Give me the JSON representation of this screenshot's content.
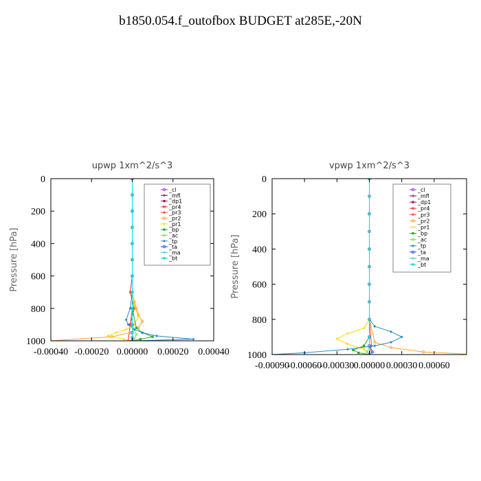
{
  "main_title": "b1850.054.f_outofbox  BUDGET at285E,-20N",
  "colors": {
    "_cl": "#9933cc",
    "_mfl": "#660066",
    "_dp1": "#b01050",
    "_pr4": "#e03050",
    "_pr3": "#ff4040",
    "_pr2": "#ffa030",
    "_pr1": "#ffd700",
    "_bp": "#22aa22",
    "_ac": "#66ee44",
    "_tp": "#2288cc",
    "_ta": "#2244ee",
    "_ma": "#44bbbb",
    "_bt": "#00dddd"
  },
  "chart_data": [
    {
      "type": "line",
      "title": "upwp  1xm^2/s^3",
      "ylabel": "Pressure [hPa]",
      "ylim": [
        1000,
        0
      ],
      "xlim": [
        -0.0004,
        0.0004
      ],
      "yticks": [
        0,
        200,
        400,
        600,
        800,
        1000
      ],
      "ytick_labels": [
        "0",
        "200",
        "400",
        "600",
        "800",
        "1000"
      ],
      "xticks": [
        -0.0004,
        -0.0002,
        0.0,
        0.0002,
        0.0004
      ],
      "xtick_labels": [
        "-0.00040",
        "-0.00020",
        "0.00000",
        "0.00020",
        "0.00040"
      ],
      "legend": [
        "_cl",
        "_mfl",
        "_dp1",
        "_pr4",
        "_pr3",
        "_pr2",
        "_pr1",
        "_bp",
        "_ac",
        "_tp",
        "_ta",
        "_ma",
        "_bt"
      ],
      "series": [
        {
          "name": "_cl",
          "x": [
            0,
            0,
            0,
            0,
            0,
            0,
            0,
            0,
            0,
            0,
            0
          ],
          "y": [
            0,
            100,
            200,
            300,
            400,
            500,
            600,
            700,
            800,
            900,
            1000
          ]
        },
        {
          "name": "_mfl",
          "x": [
            0,
            0,
            0,
            0,
            0,
            0,
            0,
            0,
            0,
            0,
            0
          ],
          "y": [
            0,
            100,
            200,
            300,
            400,
            500,
            600,
            700,
            800,
            900,
            1000
          ]
        },
        {
          "name": "_dp1",
          "x": [
            0,
            0,
            0,
            0,
            0,
            0,
            0,
            0,
            0,
            0,
            0
          ],
          "y": [
            0,
            100,
            200,
            300,
            400,
            500,
            600,
            700,
            800,
            900,
            1000
          ]
        },
        {
          "name": "_pr4",
          "x": [
            0,
            0,
            0,
            0,
            0,
            0,
            0,
            -1e-05,
            1e-05,
            -1e-05,
            -2e-05
          ],
          "y": [
            0,
            100,
            200,
            300,
            400,
            500,
            600,
            700,
            800,
            900,
            1000
          ]
        },
        {
          "name": "_pr3",
          "x": [
            0,
            0,
            0,
            0,
            0,
            0,
            0,
            0,
            0,
            -1e-05,
            -2e-05
          ],
          "y": [
            0,
            100,
            200,
            300,
            400,
            500,
            600,
            700,
            800,
            900,
            1000
          ]
        },
        {
          "name": "_pr2",
          "x": [
            0,
            0,
            0,
            0,
            0,
            1e-05,
            2e-05,
            3e-05,
            5e-05,
            3e-05,
            -1e-05,
            -0.0001,
            -0.0004
          ],
          "y": [
            0,
            200,
            400,
            600,
            700,
            760,
            800,
            840,
            880,
            920,
            950,
            975,
            1000
          ]
        },
        {
          "name": "_pr1",
          "x": [
            0,
            0,
            0,
            0,
            0,
            1e-05,
            3e-05,
            1e-05,
            -3e-05,
            -8e-05,
            -0.00012,
            -4e-05,
            0
          ],
          "y": [
            0,
            200,
            400,
            600,
            700,
            780,
            850,
            900,
            930,
            950,
            970,
            990,
            1000
          ]
        },
        {
          "name": "_bp",
          "x": [
            0,
            0,
            0,
            0,
            0,
            2e-05,
            5e-05,
            0.0001,
            4e-05,
            0
          ],
          "y": [
            0,
            200,
            400,
            600,
            800,
            920,
            950,
            975,
            990,
            1000
          ]
        },
        {
          "name": "_ac",
          "x": [
            0,
            0,
            0,
            0,
            0,
            0,
            2e-05,
            1e-05,
            0
          ],
          "y": [
            0,
            200,
            400,
            600,
            800,
            900,
            960,
            990,
            1000
          ]
        },
        {
          "name": "_tp",
          "x": [
            0,
            0,
            0,
            0,
            0,
            -1e-05,
            -3e-05,
            -2e-05,
            1e-05,
            5e-05,
            0.00012,
            0.0003,
            0
          ],
          "y": [
            0,
            200,
            400,
            600,
            700,
            800,
            870,
            900,
            930,
            950,
            970,
            990,
            1000
          ]
        },
        {
          "name": "_ta",
          "x": [
            0,
            0,
            0,
            0,
            0,
            0,
            0,
            0,
            0
          ],
          "y": [
            0,
            200,
            400,
            600,
            800,
            900,
            950,
            980,
            1000
          ]
        },
        {
          "name": "_ma",
          "x": [
            0,
            0,
            0,
            0,
            0,
            0,
            0,
            0,
            0,
            0,
            0
          ],
          "y": [
            0,
            100,
            200,
            300,
            400,
            500,
            600,
            700,
            800,
            900,
            1000
          ]
        },
        {
          "name": "_bt",
          "x": [
            0,
            0,
            0,
            0,
            0,
            0,
            0,
            0,
            0,
            0,
            0
          ],
          "y": [
            0,
            100,
            200,
            300,
            400,
            500,
            600,
            700,
            800,
            900,
            1000
          ]
        }
      ]
    },
    {
      "type": "line",
      "title": "vpwp  1xm^2/s^3",
      "ylabel": "Pressure [hPa]",
      "ylim": [
        1000,
        0
      ],
      "xlim": [
        -0.0009,
        0.0009
      ],
      "yticks": [
        0,
        200,
        400,
        600,
        800,
        1000
      ],
      "ytick_labels": [
        "0",
        "200",
        "400",
        "600",
        "800",
        "1000"
      ],
      "xticks": [
        -0.0009,
        -0.0006,
        -0.0003,
        0.0,
        0.0003,
        0.0006
      ],
      "xtick_labels": [
        "-0.00090",
        "-0.00060",
        "-0.00030",
        "0.00000",
        "0.00030",
        "0.00060"
      ],
      "legend": [
        "_cl",
        "_mfl",
        "_dp1",
        "_pr4",
        "_pr3",
        "_pr2",
        "_pr1",
        "_bp",
        "_ac",
        "_tp",
        "_ta",
        "_ma",
        "_bt"
      ],
      "series": [
        {
          "name": "_cl",
          "x": [
            0,
            0,
            0,
            0,
            0,
            0,
            0,
            0,
            0,
            0,
            0
          ],
          "y": [
            0,
            100,
            200,
            300,
            400,
            500,
            600,
            700,
            800,
            900,
            1000
          ]
        },
        {
          "name": "_mfl",
          "x": [
            0,
            0,
            0,
            0,
            0,
            0,
            0,
            0,
            0,
            0,
            0
          ],
          "y": [
            0,
            100,
            200,
            300,
            400,
            500,
            600,
            700,
            800,
            900,
            1000
          ]
        },
        {
          "name": "_dp1",
          "x": [
            0,
            0,
            0,
            0,
            0,
            0,
            0,
            0,
            0,
            0,
            0
          ],
          "y": [
            0,
            100,
            200,
            300,
            400,
            500,
            600,
            700,
            800,
            900,
            1000
          ]
        },
        {
          "name": "_pr4",
          "x": [
            0,
            0,
            0,
            0,
            0,
            0,
            0,
            0,
            0,
            0,
            0
          ],
          "y": [
            0,
            100,
            200,
            300,
            400,
            500,
            600,
            700,
            800,
            900,
            1000
          ]
        },
        {
          "name": "_pr3",
          "x": [
            0,
            0,
            0,
            0,
            0,
            0,
            0,
            0,
            0,
            2e-05,
            0
          ],
          "y": [
            0,
            100,
            200,
            300,
            400,
            500,
            600,
            700,
            800,
            950,
            1000
          ]
        },
        {
          "name": "_pr2",
          "x": [
            0,
            0,
            0,
            0,
            0,
            5e-05,
            0.0002,
            0.0005,
            0.001
          ],
          "y": [
            0,
            200,
            400,
            600,
            800,
            930,
            960,
            985,
            1000
          ]
        },
        {
          "name": "_pr1",
          "x": [
            0,
            0,
            0,
            0,
            0,
            -5e-05,
            -0.0002,
            -0.0003,
            -0.0002,
            -5e-05,
            0
          ],
          "y": [
            0,
            200,
            400,
            600,
            800,
            850,
            880,
            910,
            940,
            970,
            1000
          ]
        },
        {
          "name": "_bp",
          "x": [
            0,
            0,
            0,
            0,
            0,
            0,
            -5e-05,
            -0.00015,
            -0.0001,
            0
          ],
          "y": [
            0,
            200,
            400,
            600,
            800,
            900,
            950,
            975,
            990,
            1000
          ]
        },
        {
          "name": "_ac",
          "x": [
            0,
            0,
            0,
            0,
            0,
            0,
            -2e-05,
            0
          ],
          "y": [
            0,
            200,
            400,
            600,
            800,
            950,
            985,
            1000
          ]
        },
        {
          "name": "_tp",
          "x": [
            0,
            0,
            0,
            0,
            0,
            5e-05,
            0.0002,
            0.0003,
            0.0002,
            5e-05,
            -0.0002,
            -0.0006,
            -0.0009
          ],
          "y": [
            0,
            200,
            400,
            600,
            800,
            840,
            870,
            900,
            930,
            950,
            970,
            990,
            1000
          ]
        },
        {
          "name": "_ta",
          "x": [
            0,
            0,
            0,
            0,
            0,
            0,
            0,
            3e-05,
            0
          ],
          "y": [
            0,
            200,
            400,
            600,
            800,
            900,
            950,
            985,
            1000
          ]
        },
        {
          "name": "_ma",
          "x": [
            0,
            0,
            0,
            0,
            0,
            0,
            0,
            0,
            0,
            0,
            0
          ],
          "y": [
            0,
            100,
            200,
            300,
            400,
            500,
            600,
            700,
            800,
            900,
            1000
          ]
        },
        {
          "name": "_bt",
          "x": [
            0,
            0,
            0,
            0,
            0,
            0,
            0,
            0,
            0,
            0,
            0
          ],
          "y": [
            0,
            100,
            200,
            300,
            400,
            500,
            600,
            700,
            800,
            900,
            1000
          ]
        }
      ]
    }
  ]
}
